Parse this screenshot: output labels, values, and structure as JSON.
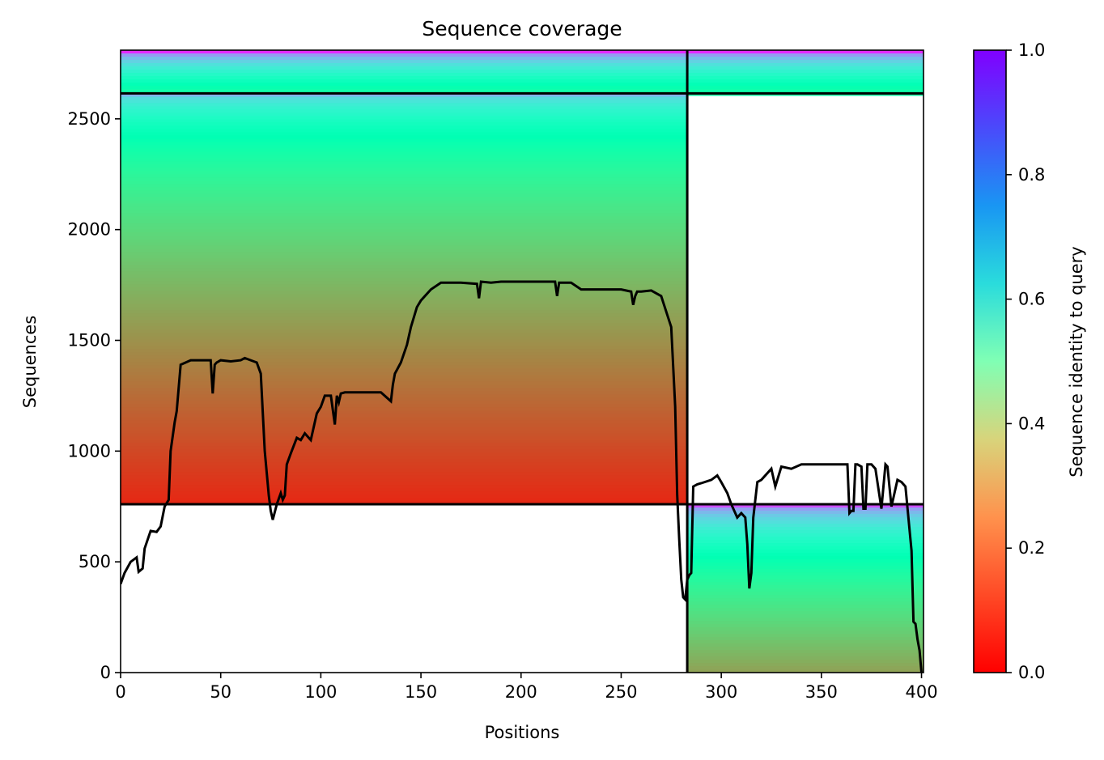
{
  "chart_data": {
    "type": "heatmap",
    "title": "Sequence coverage",
    "xlabel": "Positions",
    "ylabel": "Sequences",
    "colorbar_label": "Sequence identity to query",
    "colormap": "rainbow_r",
    "xlim": [
      0,
      401
    ],
    "ylim": [
      0,
      2810
    ],
    "xticks": [
      0,
      50,
      100,
      150,
      200,
      250,
      300,
      350,
      400
    ],
    "yticks": [
      0,
      500,
      1000,
      1500,
      2000,
      2500
    ],
    "colorbar_ticks": [
      0.0,
      0.2,
      0.4,
      0.6,
      0.8,
      1.0
    ],
    "colorbar_range": [
      0.0,
      1.0
    ],
    "chain_break_x": 283,
    "group_boundaries_y": [
      760,
      2615
    ],
    "blocks": [
      {
        "name": "paired",
        "x_range": [
          0,
          401
        ],
        "y_range": [
          2615,
          2810
        ],
        "identity_top": 0.95,
        "identity_bottom": 0.45
      },
      {
        "name": "chain-A-unpaired",
        "x_range": [
          0,
          283
        ],
        "y_range": [
          760,
          2615
        ],
        "identity_top": 0.75,
        "identity_bottom": 0.05
      },
      {
        "name": "chain-B-unpaired",
        "x_range": [
          283,
          401
        ],
        "y_range": [
          0,
          760
        ],
        "identity_top": 0.9,
        "identity_bottom": 0.22
      }
    ],
    "coverage_line": {
      "x": [
        0,
        2,
        5,
        8,
        9,
        11,
        12,
        15,
        18,
        20,
        22,
        24,
        25,
        27,
        28,
        30,
        35,
        40,
        45,
        46,
        47,
        48,
        50,
        55,
        60,
        62,
        65,
        68,
        70,
        72,
        74,
        75,
        76,
        78,
        80,
        81,
        82,
        83,
        85,
        88,
        90,
        92,
        95,
        98,
        100,
        102,
        105,
        107,
        108,
        109,
        110,
        112,
        115,
        120,
        125,
        130,
        135,
        136,
        137,
        140,
        143,
        145,
        148,
        150,
        155,
        160,
        170,
        178,
        179,
        180,
        185,
        190,
        200,
        210,
        217,
        218,
        219,
        225,
        230,
        240,
        250,
        255,
        256,
        257,
        258,
        260,
        265,
        270,
        275,
        277,
        278,
        279,
        280,
        281,
        282,
        283,
        284,
        285,
        286,
        288,
        290,
        295,
        298,
        300,
        303,
        305,
        308,
        310,
        312,
        313,
        314,
        315,
        316,
        318,
        320,
        325,
        327,
        330,
        335,
        340,
        345,
        350,
        355,
        360,
        362,
        363,
        364,
        365,
        366,
        367,
        368,
        370,
        371,
        372,
        373,
        375,
        377,
        380,
        382,
        383,
        384,
        385,
        388,
        390,
        392,
        395,
        396,
        397,
        398,
        399,
        400
      ],
      "y": [
        400,
        450,
        500,
        520,
        455,
        470,
        560,
        640,
        635,
        660,
        750,
        780,
        1000,
        1130,
        1180,
        1390,
        1410,
        1410,
        1410,
        1260,
        1390,
        1400,
        1410,
        1405,
        1410,
        1420,
        1410,
        1400,
        1350,
        1000,
        800,
        730,
        690,
        760,
        810,
        780,
        800,
        940,
        990,
        1060,
        1050,
        1080,
        1050,
        1170,
        1200,
        1250,
        1250,
        1120,
        1250,
        1220,
        1260,
        1265,
        1265,
        1265,
        1265,
        1265,
        1225,
        1300,
        1350,
        1400,
        1480,
        1560,
        1650,
        1680,
        1730,
        1760,
        1760,
        1755,
        1690,
        1765,
        1760,
        1765,
        1765,
        1765,
        1765,
        1700,
        1760,
        1760,
        1730,
        1730,
        1730,
        1720,
        1660,
        1700,
        1720,
        1720,
        1725,
        1700,
        1560,
        1200,
        800,
        600,
        420,
        340,
        330,
        420,
        440,
        450,
        840,
        850,
        855,
        870,
        890,
        860,
        810,
        760,
        700,
        720,
        700,
        580,
        380,
        450,
        700,
        860,
        870,
        920,
        840,
        930,
        920,
        940,
        940,
        940,
        940,
        940,
        940,
        940,
        720,
        730,
        730,
        940,
        940,
        930,
        740,
        740,
        940,
        940,
        920,
        740,
        940,
        930,
        840,
        750,
        870,
        860,
        840,
        550,
        230,
        220,
        150,
        100,
        0
      ]
    }
  }
}
